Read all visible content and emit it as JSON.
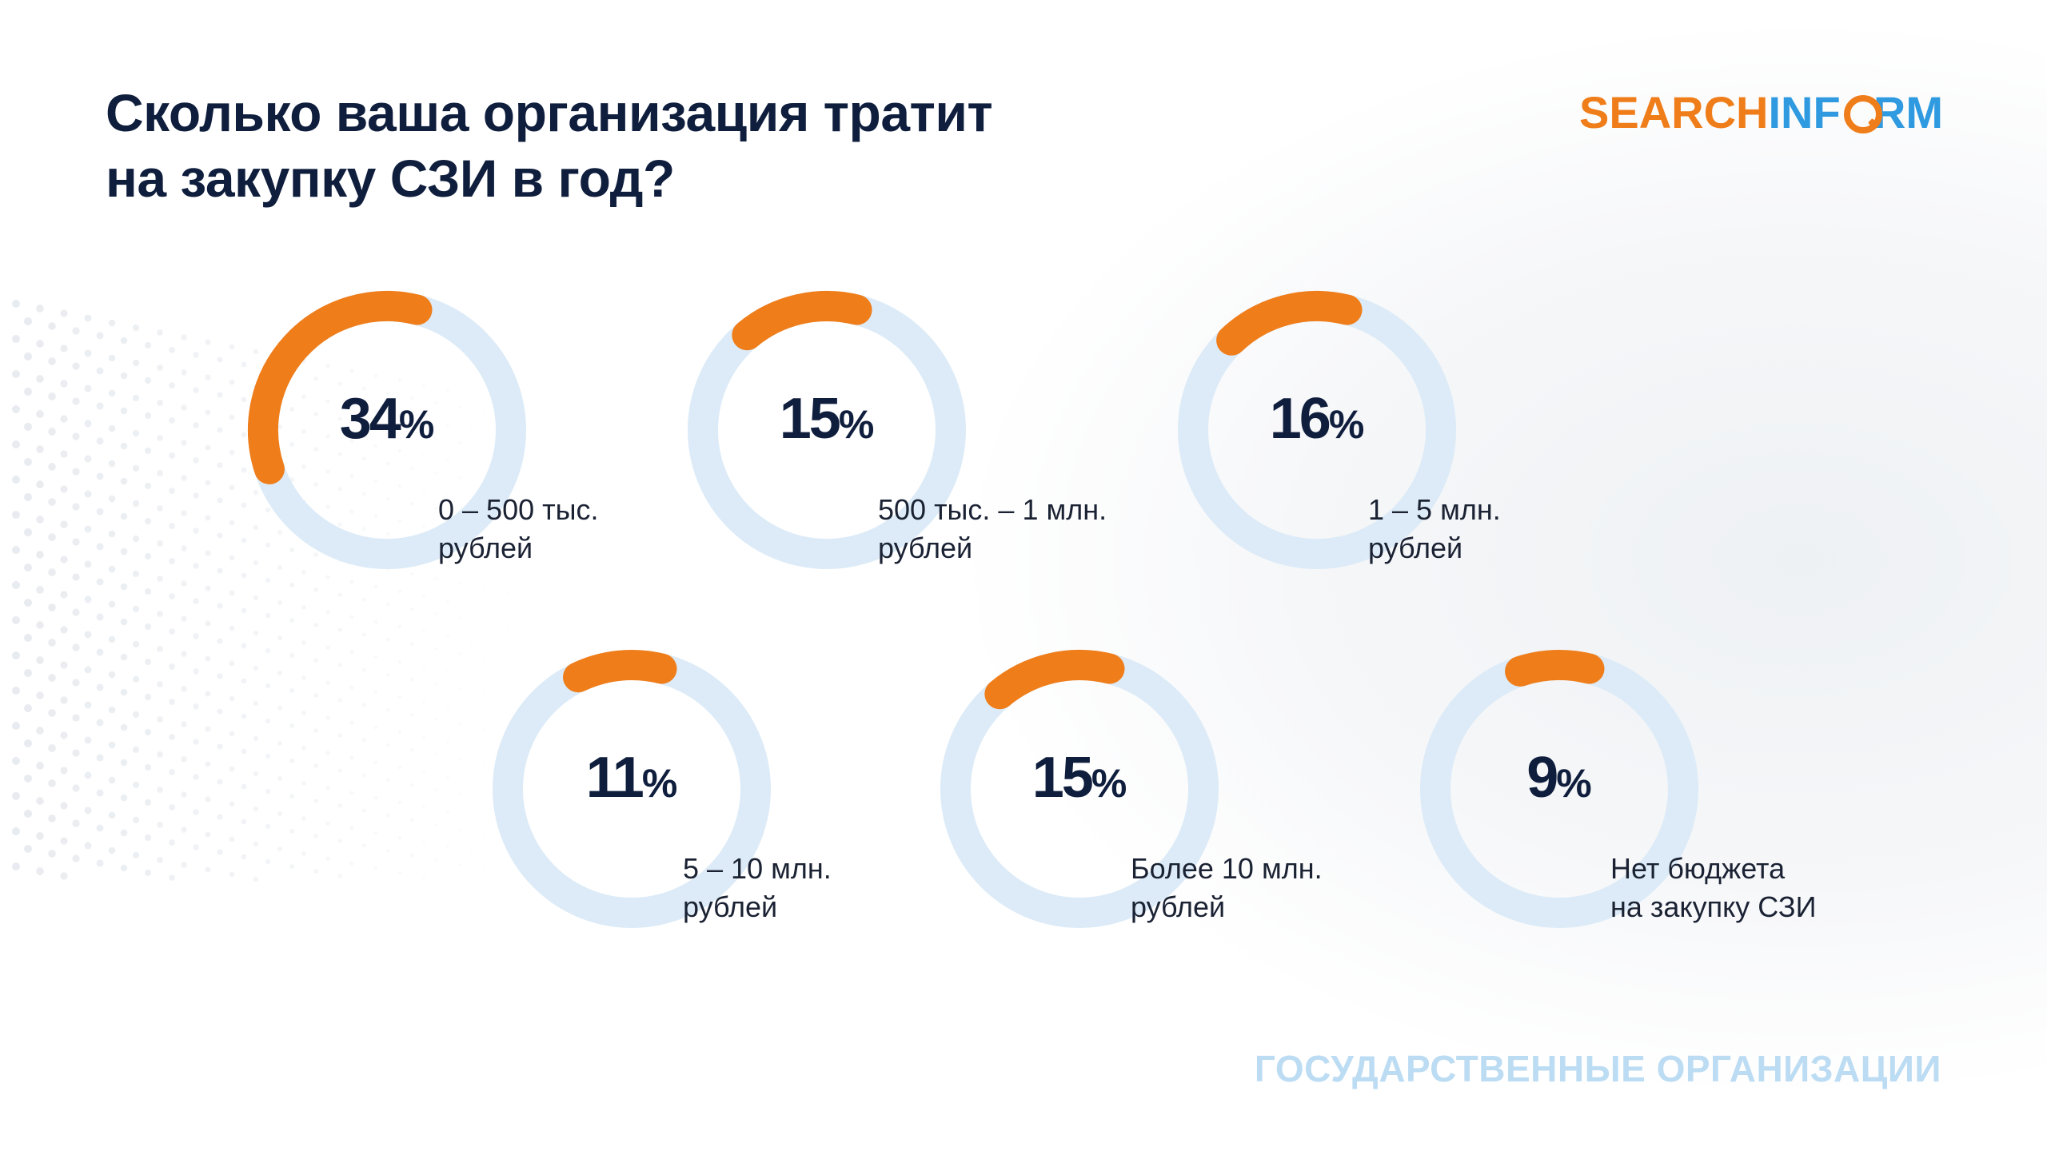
{
  "title": {
    "line1": "Сколько ваша организация тратит",
    "line2": "на закупку СЗИ в год?"
  },
  "logo": {
    "part1": "SEARCH",
    "part2": "INF",
    "part3": "RM"
  },
  "footer": "ГОСУДАРСТВЕННЫЕ ОРГАНИЗАЦИИ",
  "colors": {
    "accent": "#ef7d1a",
    "track": "#dcebf7",
    "text_dark": "#0f1e3d",
    "footer": "#bcdcf3"
  },
  "chart_data": {
    "type": "pie",
    "series": [
      {
        "value": 34,
        "percent_label": "34",
        "label_line1": "0 – 500 тыс.",
        "label_line2": "рублей"
      },
      {
        "value": 15,
        "percent_label": "15",
        "label_line1": "500 тыс. – 1 млн.",
        "label_line2": "рублей"
      },
      {
        "value": 16,
        "percent_label": "16",
        "label_line1": "1 – 5 млн.",
        "label_line2": "рублей"
      },
      {
        "value": 11,
        "percent_label": "11",
        "label_line1": "5 – 10 млн.",
        "label_line2": "рублей"
      },
      {
        "value": 15,
        "percent_label": "15",
        "label_line1": "Более 10 млн.",
        "label_line2": "рублей"
      },
      {
        "value": 9,
        "percent_label": "9",
        "label_line1": "Нет бюджета",
        "label_line2": "на закупку СЗИ"
      }
    ],
    "percent_sign": "%"
  }
}
